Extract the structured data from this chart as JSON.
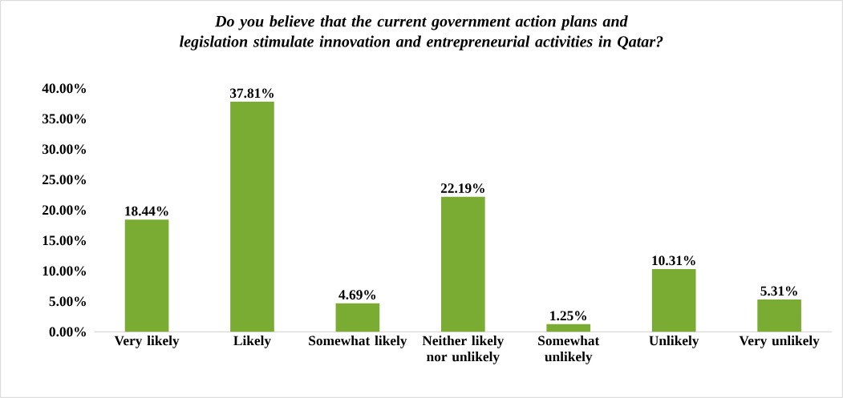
{
  "chart_data": {
    "type": "bar",
    "title": "Do you believe that the current government action plans and legislation stimulate innovation and entrepreneurial activities in Qatar?",
    "categories": [
      "Very likely",
      "Likely",
      "Somewhat likely",
      "Neither likely nor unlikely",
      "Somewhat unlikely",
      "Unlikely",
      "Very unlikely"
    ],
    "values": [
      18.44,
      37.81,
      4.69,
      22.19,
      1.25,
      10.31,
      5.31
    ],
    "value_labels": [
      "18.44%",
      "37.81%",
      "4.69%",
      "22.19%",
      "1.25%",
      "10.31%",
      "5.31%"
    ],
    "color": "#7aac34",
    "ylim": [
      0,
      40
    ],
    "yticks": [
      {
        "value": 0,
        "label": "0.00%"
      },
      {
        "value": 5,
        "label": "5.00%"
      },
      {
        "value": 10,
        "label": "10.00%"
      },
      {
        "value": 15,
        "label": "15.00%"
      },
      {
        "value": 20,
        "label": "20.00%"
      },
      {
        "value": 25,
        "label": "25.00%"
      },
      {
        "value": 30,
        "label": "30.00%"
      },
      {
        "value": 35,
        "label": "35.00%"
      },
      {
        "value": 40,
        "label": "40.00%"
      }
    ]
  }
}
